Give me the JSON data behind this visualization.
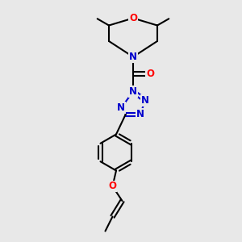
{
  "bg_color": "#e8e8e8",
  "N_color": "#0000cc",
  "O_color": "#ff0000",
  "C_color": "#000000",
  "bond_color": "#000000",
  "bond_width": 1.5,
  "font_size": 8.5,
  "figsize": [
    3.0,
    3.0
  ],
  "dpi": 100,
  "xlim": [
    0,
    10
  ],
  "ylim": [
    0,
    10
  ]
}
